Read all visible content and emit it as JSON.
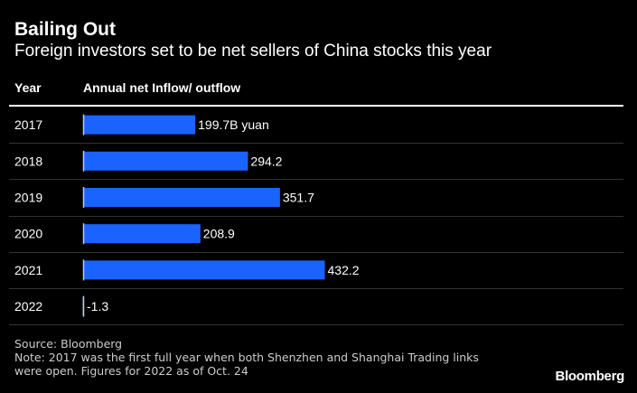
{
  "header": {
    "title": "Bailing Out",
    "subtitle": "Foreign investors set to be net sellers of China stocks this year"
  },
  "columns": {
    "year": "Year",
    "value": "Annual net Inflow/ outflow"
  },
  "chart_data": {
    "type": "bar",
    "orientation": "horizontal",
    "categories": [
      "2017",
      "2018",
      "2019",
      "2020",
      "2021",
      "2022"
    ],
    "values": [
      199.7,
      294.2,
      351.7,
      208.9,
      432.2,
      -1.3
    ],
    "value_labels": [
      "199.7B yuan",
      "294.2",
      "351.7",
      "208.9",
      "432.2",
      "-1.3"
    ],
    "unit": "billion yuan",
    "colors": {
      "bar": "#1a63ff",
      "negative_bar": "#7aa2ff",
      "axis": "#bfc8d8",
      "row_divider": "#333333"
    }
  },
  "footer": {
    "source": "Source: Bloomberg",
    "note_line1": "Note: 2017 was the first full year when both Shenzhen and Shanghai Trading links",
    "note_line2": "were open. Figures for 2022 as of Oct. 24",
    "brand": "Bloomberg"
  }
}
